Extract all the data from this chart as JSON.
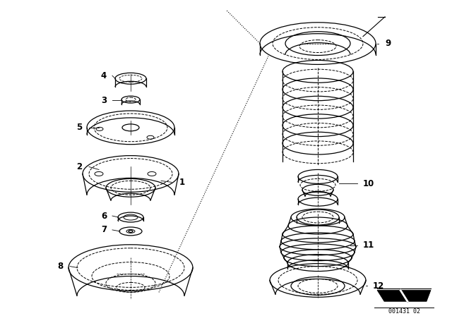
{
  "bg_color": "#ffffff",
  "fig_width": 6.4,
  "fig_height": 4.48,
  "dpi": 100,
  "watermark": "001431 02",
  "line_color": "#000000",
  "text_color": "#000000",
  "font_size": 8.5
}
